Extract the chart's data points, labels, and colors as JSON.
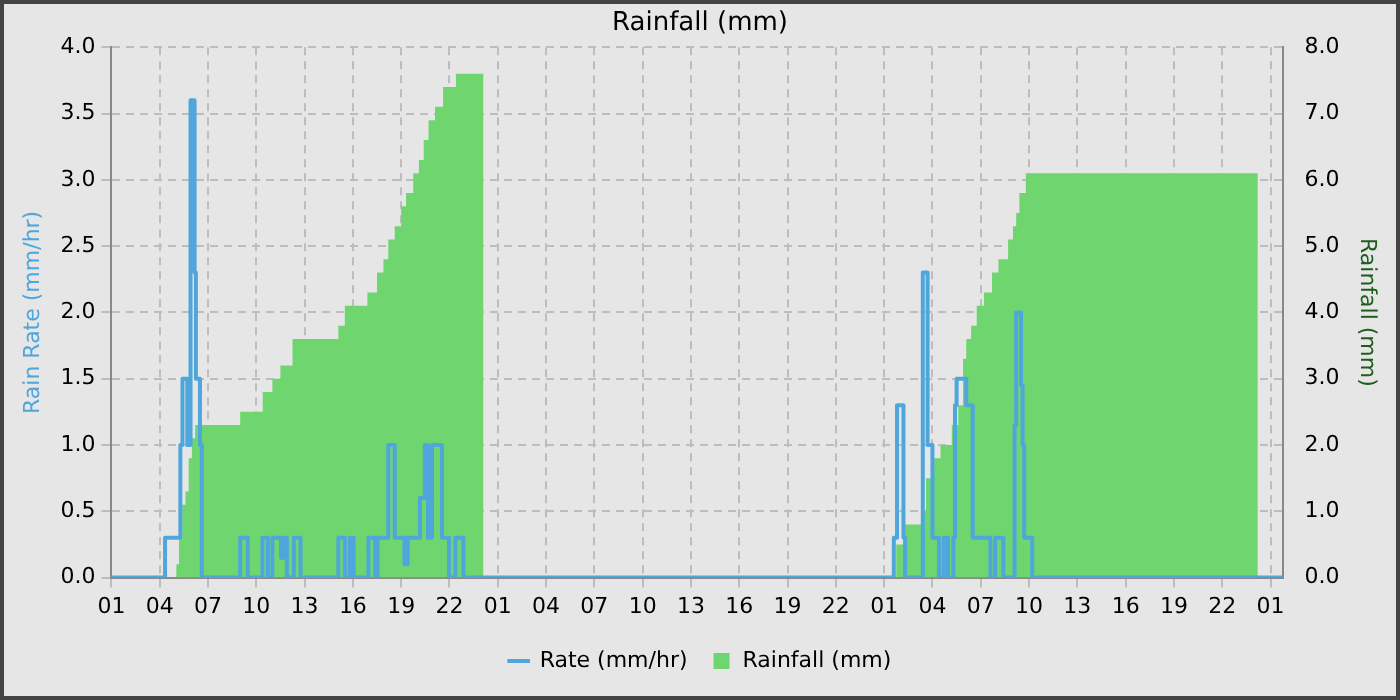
{
  "chart_data": {
    "type": "line",
    "title": "Rainfall (mm)",
    "ylabel": "Rain Rate (mm/hr)",
    "y2label": "Rainfall (mm)",
    "xlim": [
      "--01-01T01:00",
      "--01-04T01:45"
    ],
    "xticks": [
      {
        "value": "--01-01T01:00",
        "label": "01"
      },
      {
        "value": "--01-01T04:00",
        "label": "04"
      },
      {
        "value": "--01-01T07:00",
        "label": "07"
      },
      {
        "value": "--01-01T10:00",
        "label": "10"
      },
      {
        "value": "--01-01T13:00",
        "label": "13"
      },
      {
        "value": "--01-01T16:00",
        "label": "16"
      },
      {
        "value": "--01-01T19:00",
        "label": "19"
      },
      {
        "value": "--01-01T22:00",
        "label": "22"
      },
      {
        "value": "--01-02T01:00",
        "label": "01"
      },
      {
        "value": "--01-02T04:00",
        "label": "04"
      },
      {
        "value": "--01-02T07:00",
        "label": "07"
      },
      {
        "value": "--01-02T10:00",
        "label": "10"
      },
      {
        "value": "--01-02T13:00",
        "label": "13"
      },
      {
        "value": "--01-02T16:00",
        "label": "16"
      },
      {
        "value": "--01-02T19:00",
        "label": "19"
      },
      {
        "value": "--01-02T22:00",
        "label": "22"
      },
      {
        "value": "--01-03T01:00",
        "label": "01"
      },
      {
        "value": "--01-03T04:00",
        "label": "04"
      },
      {
        "value": "--01-03T07:00",
        "label": "07"
      },
      {
        "value": "--01-03T10:00",
        "label": "10"
      },
      {
        "value": "--01-03T13:00",
        "label": "13"
      },
      {
        "value": "--01-03T16:00",
        "label": "16"
      },
      {
        "value": "--01-03T19:00",
        "label": "19"
      },
      {
        "value": "--01-03T22:00",
        "label": "22"
      },
      {
        "value": "--01-04T01:00",
        "label": "01"
      }
    ],
    "ylim": [
      0,
      4
    ],
    "yticks": [
      {
        "value": 0,
        "label": "0.0"
      },
      {
        "value": 0.5,
        "label": "0.5"
      },
      {
        "value": 1,
        "label": "1.0"
      },
      {
        "value": 1.5,
        "label": "1.5"
      },
      {
        "value": 2,
        "label": "2.0"
      },
      {
        "value": 2.5,
        "label": "2.5"
      },
      {
        "value": 3,
        "label": "3.0"
      },
      {
        "value": 3.5,
        "label": "3.5"
      },
      {
        "value": 4,
        "label": "4.0"
      }
    ],
    "y2lim": [
      0,
      8
    ],
    "y2ticks": [
      {
        "value": 0,
        "label": "0.0"
      },
      {
        "value": 1,
        "label": "1.0"
      },
      {
        "value": 2,
        "label": "2.0"
      },
      {
        "value": 3,
        "label": "3.0"
      },
      {
        "value": 4,
        "label": "4.0"
      },
      {
        "value": 5,
        "label": "5.0"
      },
      {
        "value": 6,
        "label": "6.0"
      },
      {
        "value": 7,
        "label": "7.0"
      },
      {
        "value": 8,
        "label": "8.0"
      }
    ],
    "grid": true,
    "legend": "bottom",
    "marker": "none",
    "series": [
      {
        "name": "Rate (mm/hr)",
        "type": "step",
        "color": "#4ea6dc",
        "x": [
          "--01-01T01:00",
          "--01-01T04:20",
          "--01-01T05:17",
          "--01-01T05:25",
          "--01-01T05:43",
          "--01-01T05:55",
          "--01-01T06:10",
          "--01-01T06:15",
          "--01-01T06:30",
          "--01-01T06:37",
          "--01-01T09:00",
          "--01-01T09:28",
          "--01-01T10:23",
          "--01-01T10:43",
          "--01-01T11:00",
          "--01-01T11:32",
          "--01-01T11:42",
          "--01-01T11:54",
          "--01-01T12:20",
          "--01-01T12:45",
          "--01-01T15:06",
          "--01-01T15:30",
          "--01-01T15:48",
          "--01-01T16:03",
          "--01-01T16:58",
          "--01-01T17:23",
          "--01-01T17:32",
          "--01-01T18:12",
          "--01-01T18:36",
          "--01-01T19:12",
          "--01-01T19:24",
          "--01-01T20:10",
          "--01-01T20:28",
          "--01-01T20:40",
          "--01-01T20:55",
          "--01-01T21:32",
          "--01-01T21:58",
          "--01-01T22:22",
          "--01-01T22:52",
          "--01-03T01:36",
          "--01-03T01:48",
          "--01-03T02:12",
          "--01-03T02:18",
          "--01-03T03:24",
          "--01-03T03:42",
          "--01-03T04:00",
          "--01-03T04:24",
          "--01-03T04:42",
          "--01-03T04:58",
          "--01-03T05:18",
          "--01-03T05:24",
          "--01-03T05:30",
          "--01-03T06:06",
          "--01-03T06:30",
          "--01-03T07:36",
          "--01-03T07:54",
          "--01-03T08:24",
          "--01-03T09:06",
          "--01-03T09:12",
          "--01-03T09:30",
          "--01-03T09:36",
          "--01-03T09:42",
          "--01-03T10:12",
          "--01-04T01:45"
        ],
        "values": [
          0,
          0.3,
          1.0,
          1.5,
          1.0,
          3.6,
          2.3,
          1.5,
          1.0,
          0,
          0.3,
          0,
          0.3,
          0,
          0.3,
          0.15,
          0.3,
          0,
          0.3,
          0,
          0.3,
          0,
          0.3,
          0,
          0.3,
          0,
          0.3,
          1.0,
          0.3,
          0.1,
          0.3,
          0.6,
          1.0,
          0.3,
          1.0,
          0.3,
          0,
          0.3,
          0,
          0.3,
          1.3,
          0.3,
          0,
          2.3,
          1.0,
          0.3,
          0,
          0.3,
          0,
          0.3,
          1.3,
          1.5,
          1.3,
          0.3,
          0,
          0.3,
          0,
          1.15,
          2.0,
          1.45,
          1.0,
          0.3,
          0,
          0
        ]
      },
      {
        "name": "Rainfall (mm)",
        "type": "area",
        "axis": "y2",
        "color": "#6fd66f",
        "x": [
          "--01-01T01:00",
          "--01-01T05:02",
          "--01-01T05:12",
          "--01-01T05:24",
          "--01-01T05:36",
          "--01-01T05:48",
          "--01-01T06:00",
          "--01-01T06:12",
          "--01-01T09:00",
          "--01-01T10:24",
          "--01-01T11:00",
          "--01-01T11:30",
          "--01-01T12:15",
          "--01-01T15:06",
          "--01-01T15:30",
          "--01-01T16:54",
          "--01-01T17:30",
          "--01-01T17:54",
          "--01-01T18:12",
          "--01-01T18:36",
          "--01-01T19:00",
          "--01-01T19:18",
          "--01-01T19:45",
          "--01-01T20:06",
          "--01-01T20:24",
          "--01-01T20:42",
          "--01-01T21:06",
          "--01-01T21:36",
          "--01-01T22:24",
          "--01-02T00:06",
          "--01-03T01:45",
          "--01-03T02:18",
          "--01-03T03:18",
          "--01-03T03:36",
          "--01-03T04:00",
          "--01-03T04:30",
          "--01-03T05:12",
          "--01-03T05:36",
          "--01-03T05:54",
          "--01-03T06:06",
          "--01-03T06:24",
          "--01-03T06:45",
          "--01-03T07:12",
          "--01-03T07:42",
          "--01-03T08:06",
          "--01-03T08:42",
          "--01-03T09:00",
          "--01-03T09:12",
          "--01-03T09:24",
          "--01-03T09:48",
          "--01-04T00:12",
          "--01-04T01:45"
        ],
        "values": [
          0,
          0.2,
          0.6,
          1.1,
          1.3,
          1.8,
          2.1,
          2.3,
          2.5,
          2.8,
          3.0,
          3.2,
          3.6,
          3.8,
          4.1,
          4.3,
          4.6,
          4.8,
          5.1,
          5.3,
          5.6,
          5.8,
          6.1,
          6.3,
          6.6,
          6.9,
          7.1,
          7.4,
          7.6,
          0,
          0.5,
          0.8,
          1.0,
          1.5,
          1.8,
          2.0,
          2.3,
          2.6,
          3.3,
          3.6,
          3.8,
          4.1,
          4.3,
          4.6,
          4.8,
          5.1,
          5.3,
          5.5,
          5.8,
          6.1,
          0,
          0
        ]
      }
    ]
  }
}
